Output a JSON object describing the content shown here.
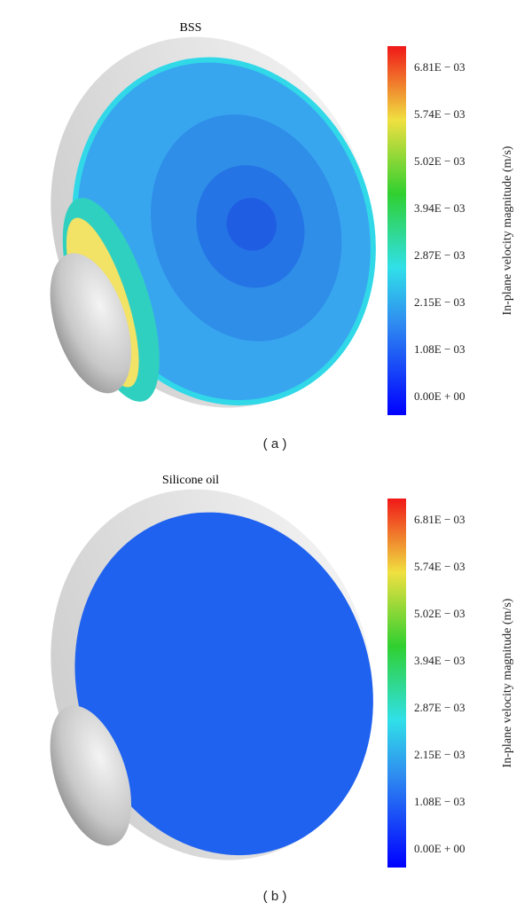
{
  "panels": [
    {
      "title": "BSS",
      "colorbar": {
        "label": "In-plane velocity magnitude (m/s)",
        "ticks": [
          "6.81E − 03",
          "5.74E − 03",
          "5.02E − 03",
          "3.94E − 03",
          "2.87E − 03",
          "2.15E − 03",
          "1.08E − 03",
          "0.00E + 00"
        ]
      },
      "caption": "( a )"
    },
    {
      "title": "Silicone oil",
      "colorbar": {
        "label": "In-plane velocity magnitude (m/s)",
        "ticks": [
          "6.81E − 03",
          "5.74E − 03",
          "5.02E − 03",
          "3.94E − 03",
          "2.87E − 03",
          "2.15E − 03",
          "1.08E − 03",
          "0.00E + 00"
        ]
      },
      "caption": "( b )"
    }
  ]
}
